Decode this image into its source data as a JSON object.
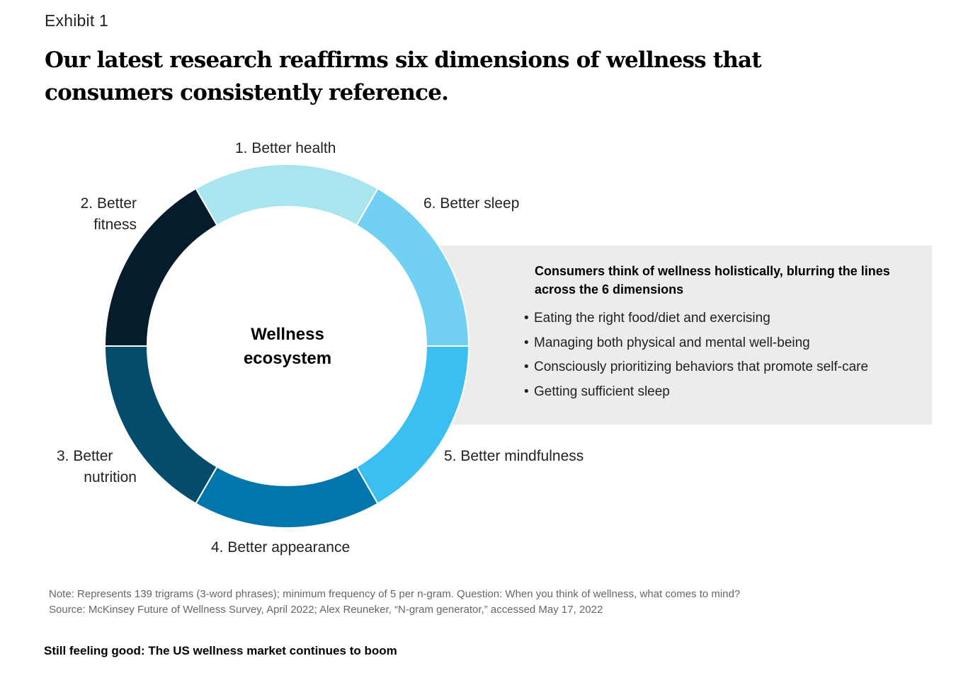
{
  "header": {
    "exhibit": "Exhibit 1",
    "title": "Our latest research reaffirms six dimensions of wellness that consumers consistently reference."
  },
  "diagram": {
    "center_label_line1": "Wellness",
    "center_label_line2": "ecosystem",
    "segments": [
      {
        "id": "health",
        "label": "1. Better health",
        "color": "#a9e5ef"
      },
      {
        "id": "fitness",
        "label_line1": "2. Better",
        "label_line2": "fitness",
        "color": "#051c2c"
      },
      {
        "id": "nutrition",
        "label_line1": "3. Better",
        "label_line2": "nutrition",
        "color": "#054b6b"
      },
      {
        "id": "appearance",
        "label": "4. Better appearance",
        "color": "#0076ad"
      },
      {
        "id": "mindfulness",
        "label": "5. Better mindfulness",
        "color": "#3bbff2"
      },
      {
        "id": "sleep",
        "label": "6. Better sleep",
        "color": "#72d0f2"
      }
    ]
  },
  "callout": {
    "title": "Consumers think of wellness holistically, blurring the lines across the 6 dimensions",
    "bullets": [
      "Eating the right food/diet and exercising",
      "Managing both physical and mental well-being",
      "Consciously prioritizing behaviors that promote self-care",
      "Getting sufficient sleep"
    ],
    "bullet_char": "•"
  },
  "note": {
    "line1": "Note: Represents 139 trigrams (3-word phrases); minimum frequency of 5 per n-gram. Question: When you think of wellness, what comes to mind?",
    "line2": "Source: McKinsey Future of Wellness Survey, April 2022; Alex Reuneker, “N-gram generator,” accessed May 17, 2022"
  },
  "footer": {
    "text": "Still feeling good: The US wellness market continues to boom"
  }
}
